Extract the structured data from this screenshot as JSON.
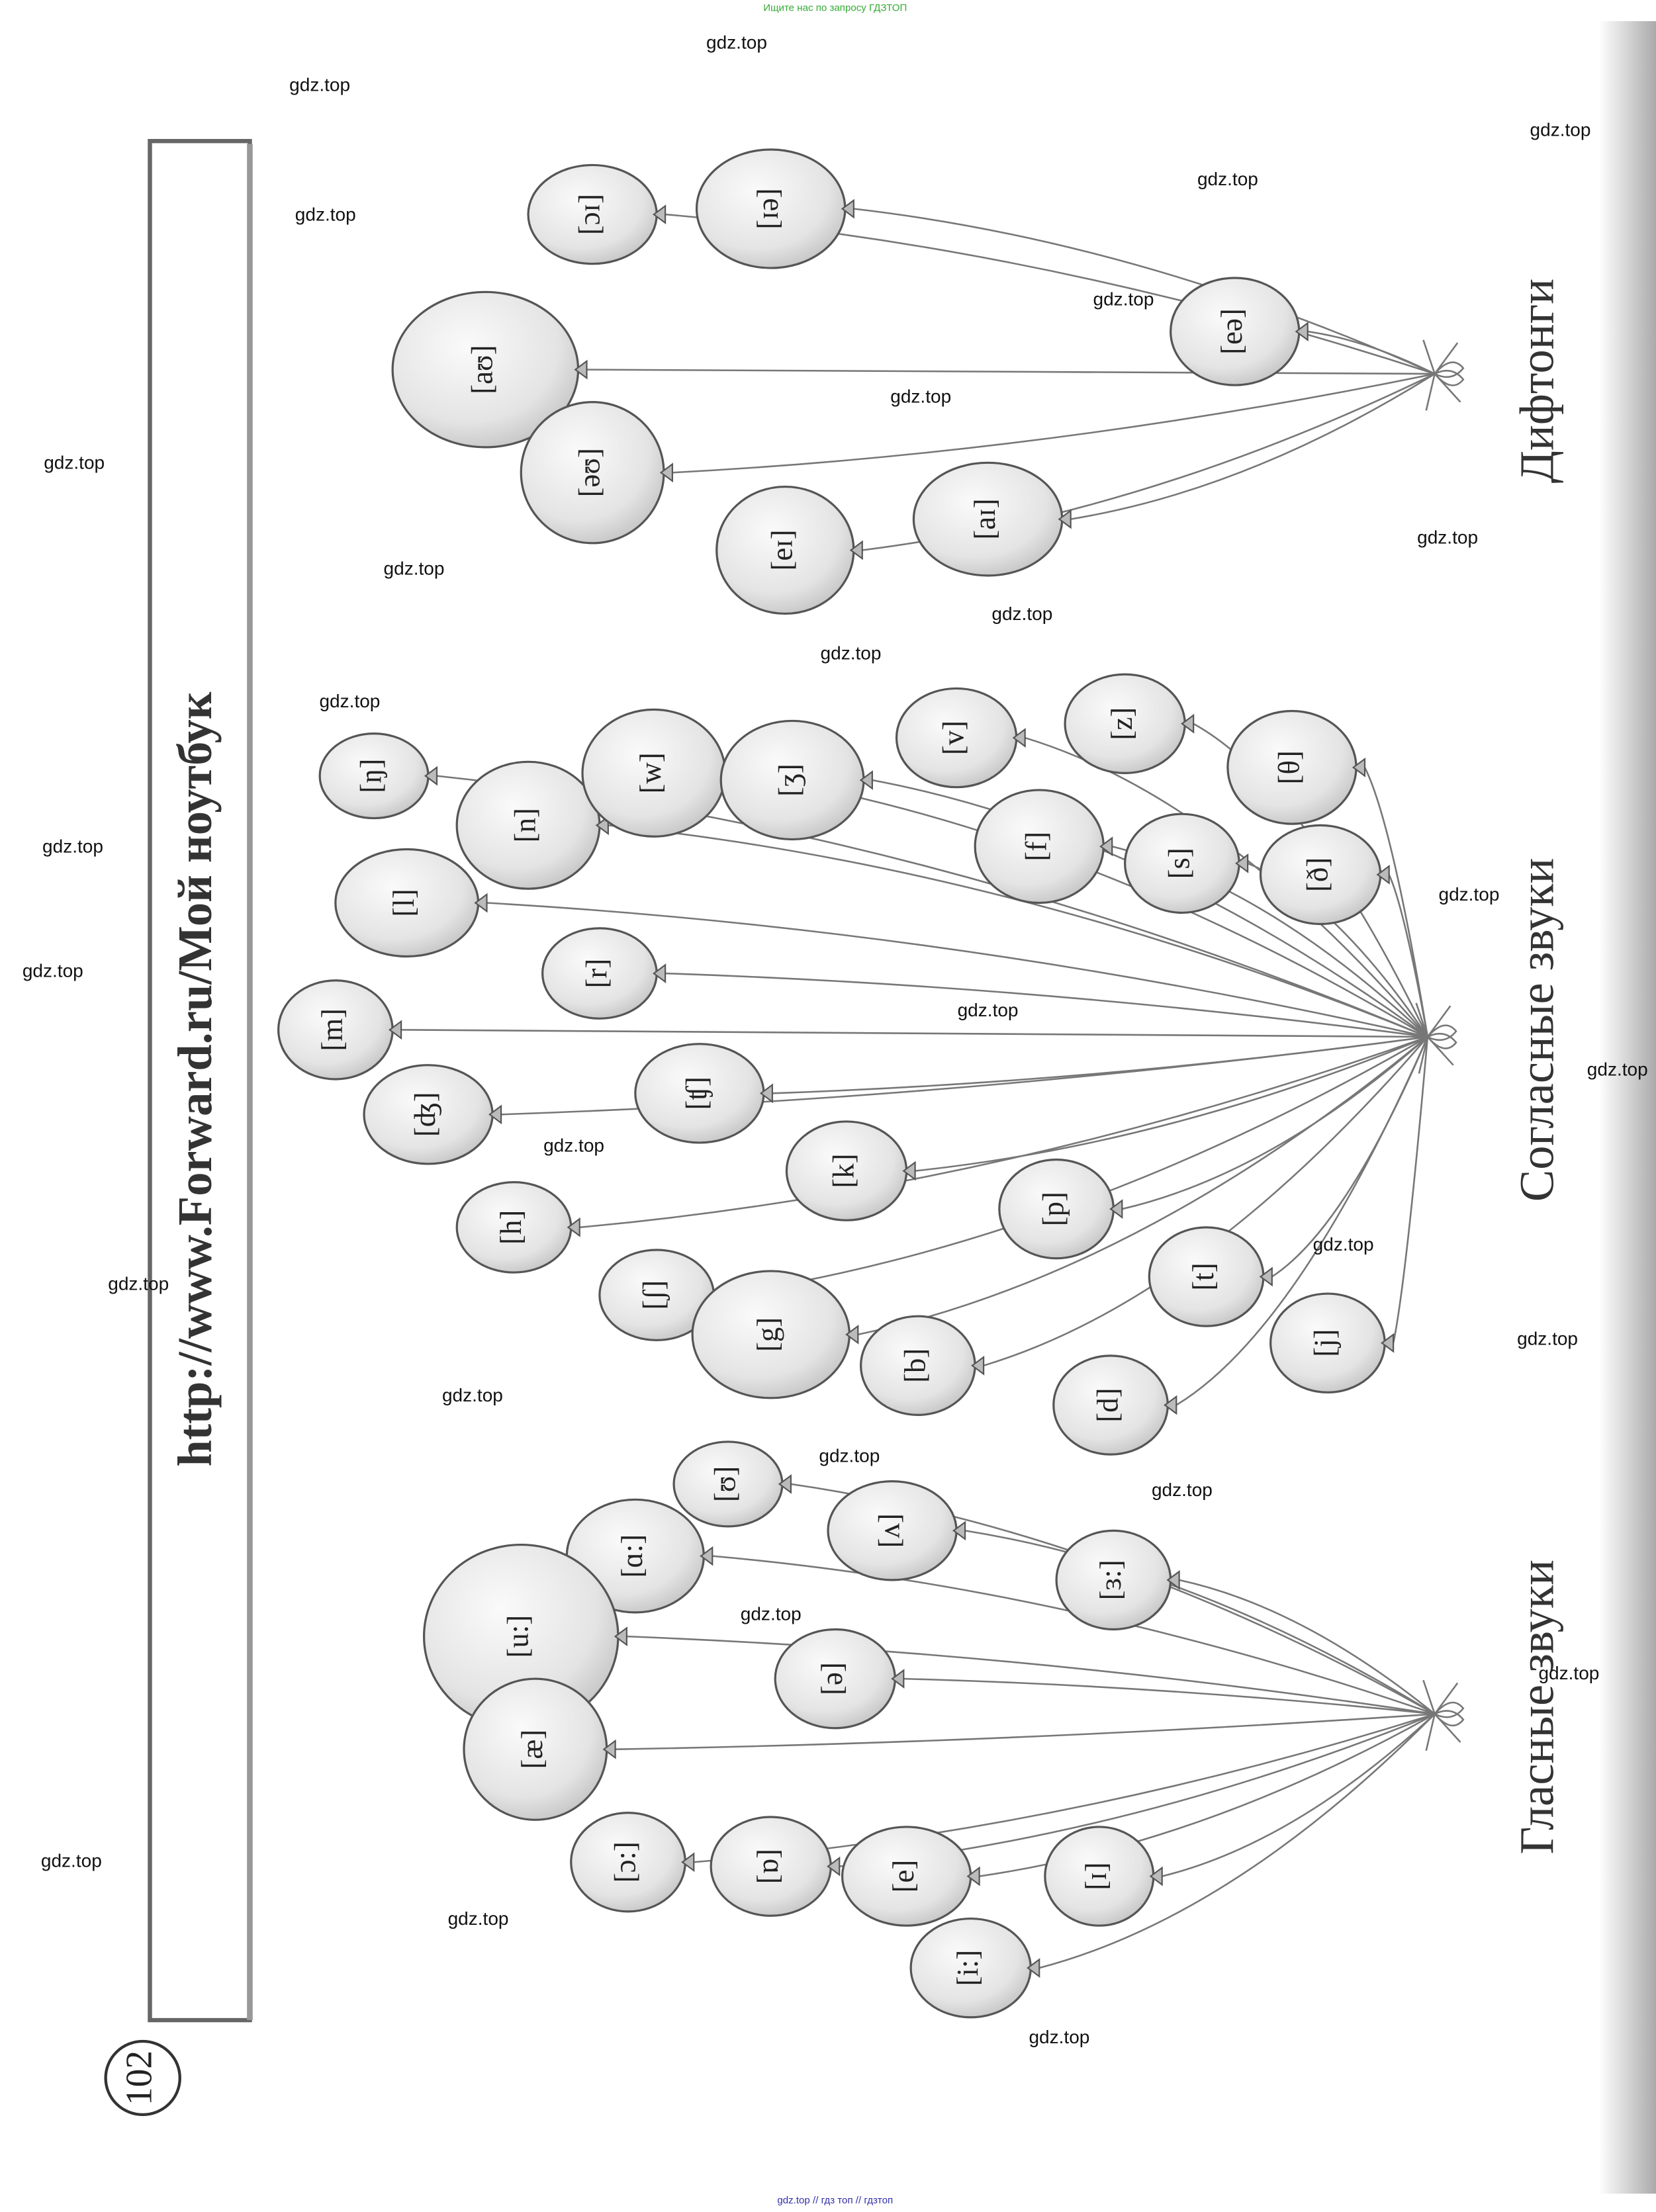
{
  "header_note": "Ищите нас по запросу ГДЗТОП",
  "footer_note": "gdz.top // гдз топ // гдзтоп",
  "url": "http://www.Forward.ru/Мой  ноутбук",
  "page_number": "102",
  "groups": [
    {
      "title": "Дифтонги",
      "balloons": [
        "[aʊ]",
        "[ɔɪ]",
        "[ɪə]",
        "[eə]",
        "[əʊ]",
        "[eɪ]",
        "[aɪ]"
      ]
    },
    {
      "title": "Согласные  звуки",
      "balloons": [
        "[ŋ]",
        "[n]",
        "[w]",
        "[ʒ]",
        "[v]",
        "[z]",
        "[θ]",
        "[f]",
        "[s]",
        "[ð]",
        "[l]",
        "[r]",
        "[m]",
        "[ʤ]",
        "[ʧ]",
        "[k]",
        "[p]",
        "[h]",
        "[t]",
        "[ʃ]",
        "[g]",
        "[b]",
        "[d]",
        "[j]"
      ]
    },
    {
      "title": "Гласные звуки",
      "balloons": [
        "[ʊ]",
        "[ɑ:]",
        "[ʌ]",
        "[ɜ:]",
        "[u:]",
        "[ə]",
        "[æ]",
        "[ɔ:]",
        "[ɒ]",
        "[e]",
        "[ɪ]",
        "[i:]"
      ]
    }
  ],
  "watermarks": [
    "gdz.top",
    "gdz.top",
    "gdz.top",
    "gdz.top",
    "gdz.top",
    "gdz.top",
    "gdz.top",
    "gdz.top",
    "gdz.top",
    "gdz.top",
    "gdz.top",
    "gdz.top",
    "gdz.top",
    "gdz.top",
    "gdz.top",
    "gdz.top",
    "gdz.top",
    "gdz.top",
    "gdz.top",
    "gdz.top",
    "gdz.top",
    "gdz.top",
    "gdz.top",
    "gdz.top",
    "gdz.top",
    "gdz.top",
    "gdz.top",
    "gdz.top",
    "gdz.top",
    "gdz.top"
  ]
}
